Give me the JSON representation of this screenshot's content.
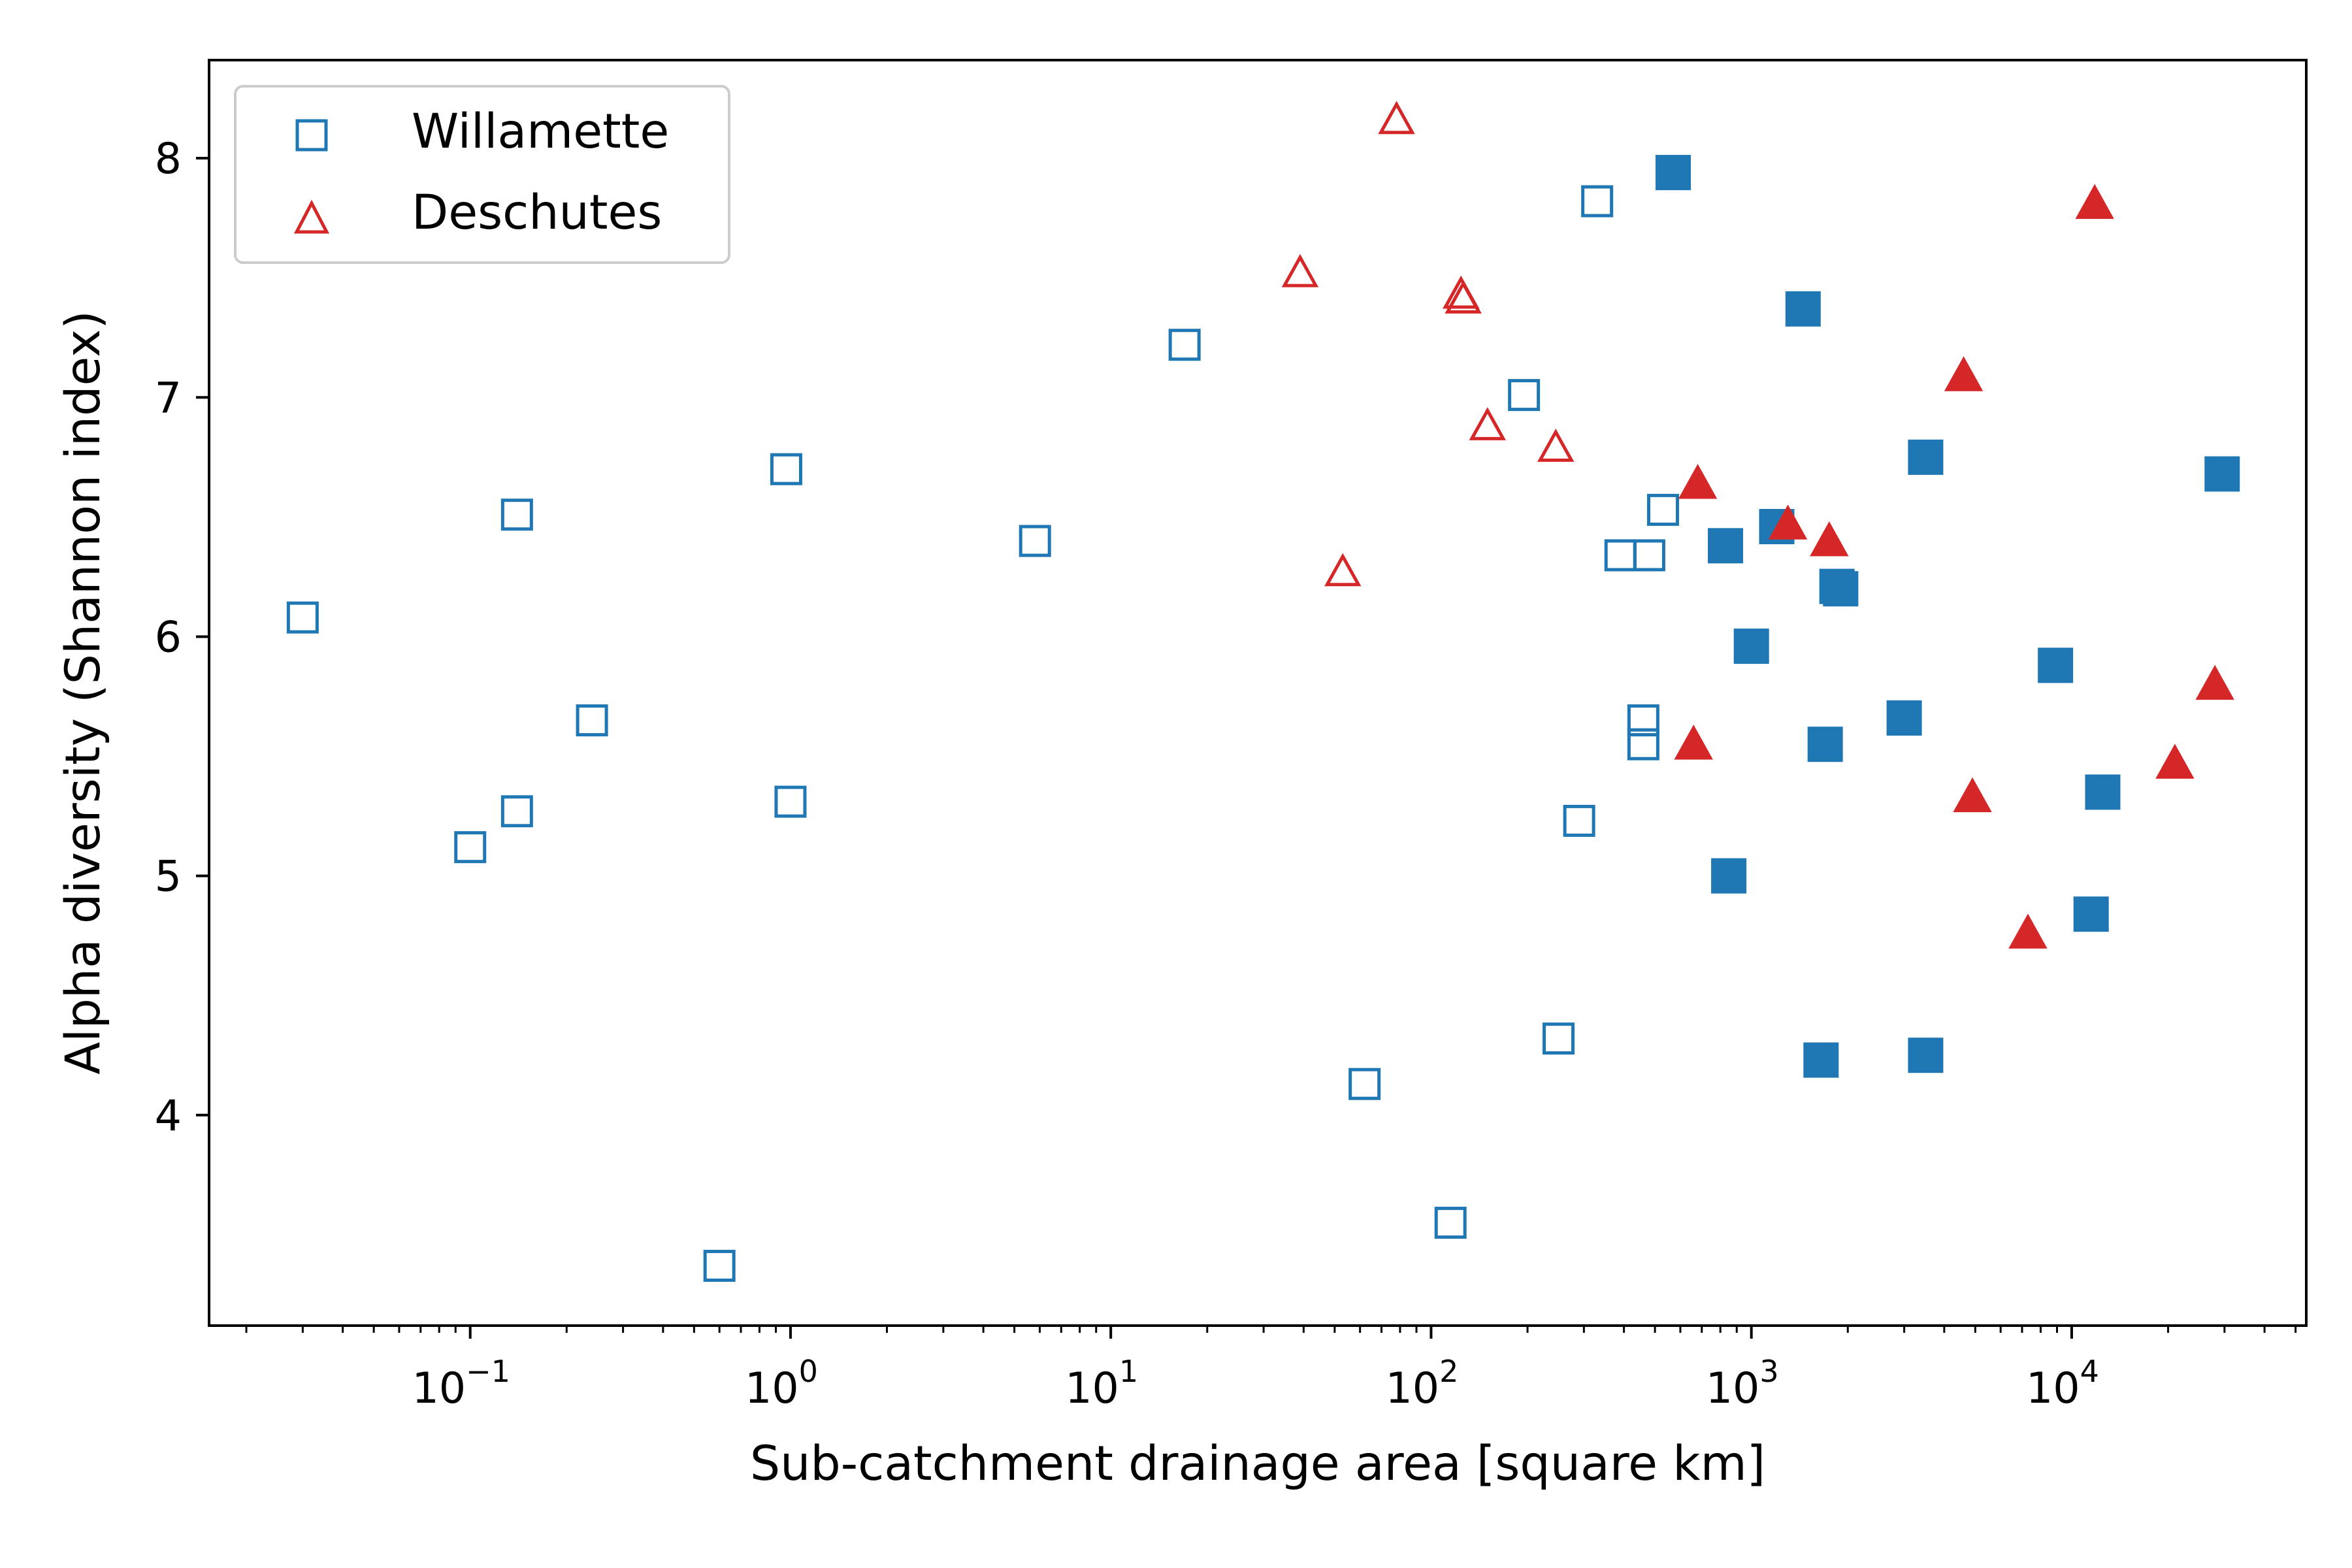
{
  "chart_data": {
    "type": "scatter",
    "title": "",
    "xlabel": "Sub-catchment drainage area [square km]",
    "ylabel": "Alpha diversity (Shannon index)",
    "x_scale": "log",
    "xlim": [
      0.0153,
      54000
    ],
    "ylim": [
      3.12,
      8.41
    ],
    "x_ticks": [
      {
        "value": 0.1,
        "base": "10",
        "exp": "−1"
      },
      {
        "value": 1,
        "base": "10",
        "exp": "0"
      },
      {
        "value": 10,
        "base": "10",
        "exp": "1"
      },
      {
        "value": 100,
        "base": "10",
        "exp": "2"
      },
      {
        "value": 1000,
        "base": "10",
        "exp": "3"
      },
      {
        "value": 10000,
        "base": "10",
        "exp": "4"
      }
    ],
    "y_ticks": [
      {
        "value": 4,
        "label": "4"
      },
      {
        "value": 5,
        "label": "5"
      },
      {
        "value": 6,
        "label": "6"
      },
      {
        "value": 7,
        "label": "7"
      },
      {
        "value": 8,
        "label": "8"
      }
    ],
    "grid": false,
    "legend_position": "top-left",
    "series": [
      {
        "name": "Willamette",
        "marker": "square",
        "color": "#1f77b4",
        "points": [
          {
            "x": 0.03,
            "y": 6.08,
            "filled": false
          },
          {
            "x": 0.1,
            "y": 5.12,
            "filled": false
          },
          {
            "x": 0.14,
            "y": 6.51,
            "filled": false
          },
          {
            "x": 0.14,
            "y": 5.27,
            "filled": false
          },
          {
            "x": 0.24,
            "y": 5.65,
            "filled": false
          },
          {
            "x": 0.6,
            "y": 3.37,
            "filled": false
          },
          {
            "x": 0.97,
            "y": 6.7,
            "filled": false
          },
          {
            "x": 1.0,
            "y": 5.31,
            "filled": false
          },
          {
            "x": 5.8,
            "y": 6.4,
            "filled": false
          },
          {
            "x": 17,
            "y": 7.22,
            "filled": false
          },
          {
            "x": 62,
            "y": 4.13,
            "filled": false
          },
          {
            "x": 115,
            "y": 3.55,
            "filled": false
          },
          {
            "x": 195,
            "y": 7.01,
            "filled": false
          },
          {
            "x": 250,
            "y": 4.32,
            "filled": false
          },
          {
            "x": 290,
            "y": 5.23,
            "filled": false
          },
          {
            "x": 330,
            "y": 7.82,
            "filled": false
          },
          {
            "x": 390,
            "y": 6.34,
            "filled": false
          },
          {
            "x": 460,
            "y": 5.65,
            "filled": false
          },
          {
            "x": 460,
            "y": 5.55,
            "filled": false
          },
          {
            "x": 480,
            "y": 6.34,
            "filled": false
          },
          {
            "x": 530,
            "y": 6.53,
            "filled": false
          },
          {
            "x": 570,
            "y": 7.94,
            "filled": true
          },
          {
            "x": 830,
            "y": 6.38,
            "filled": true
          },
          {
            "x": 850,
            "y": 5.0,
            "filled": true
          },
          {
            "x": 1000,
            "y": 5.96,
            "filled": true
          },
          {
            "x": 1200,
            "y": 6.46,
            "filled": true
          },
          {
            "x": 1450,
            "y": 7.37,
            "filled": true
          },
          {
            "x": 1650,
            "y": 4.23,
            "filled": true
          },
          {
            "x": 1700,
            "y": 5.55,
            "filled": true
          },
          {
            "x": 1850,
            "y": 6.21,
            "filled": true
          },
          {
            "x": 1900,
            "y": 6.2,
            "filled": true
          },
          {
            "x": 3000,
            "y": 5.66,
            "filled": true
          },
          {
            "x": 3500,
            "y": 6.75,
            "filled": true
          },
          {
            "x": 3500,
            "y": 4.25,
            "filled": true
          },
          {
            "x": 8900,
            "y": 5.88,
            "filled": true
          },
          {
            "x": 11500,
            "y": 4.84,
            "filled": true
          },
          {
            "x": 12500,
            "y": 5.35,
            "filled": true
          },
          {
            "x": 29500,
            "y": 6.68,
            "filled": true
          }
        ]
      },
      {
        "name": "Deschutes",
        "marker": "triangle",
        "color": "#d62728",
        "points": [
          {
            "x": 39,
            "y": 7.52,
            "filled": false
          },
          {
            "x": 53,
            "y": 6.27,
            "filled": false
          },
          {
            "x": 78,
            "y": 8.16,
            "filled": false
          },
          {
            "x": 124,
            "y": 7.43,
            "filled": false
          },
          {
            "x": 126,
            "y": 7.41,
            "filled": false
          },
          {
            "x": 150,
            "y": 6.88,
            "filled": false
          },
          {
            "x": 245,
            "y": 6.79,
            "filled": false
          },
          {
            "x": 660,
            "y": 5.55,
            "filled": true
          },
          {
            "x": 680,
            "y": 6.64,
            "filled": true
          },
          {
            "x": 1300,
            "y": 6.47,
            "filled": true
          },
          {
            "x": 1750,
            "y": 6.4,
            "filled": true
          },
          {
            "x": 4600,
            "y": 7.09,
            "filled": true
          },
          {
            "x": 4900,
            "y": 5.33,
            "filled": true
          },
          {
            "x": 7300,
            "y": 4.76,
            "filled": true
          },
          {
            "x": 11800,
            "y": 7.81,
            "filled": true
          },
          {
            "x": 21000,
            "y": 5.47,
            "filled": true
          },
          {
            "x": 28000,
            "y": 5.8,
            "filled": true
          }
        ]
      }
    ]
  }
}
